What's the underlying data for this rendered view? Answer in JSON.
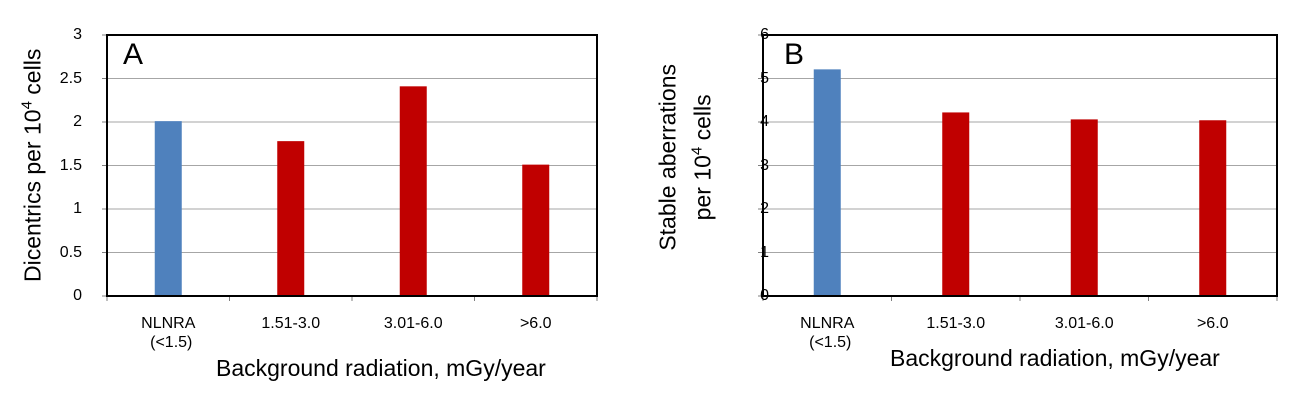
{
  "chart_data": [
    {
      "type": "bar",
      "panel_label": "A",
      "categories": [
        "NLNRA\n(<1.5)",
        "1.51-3.0",
        "3.01-6.0",
        ">6.0"
      ],
      "values": [
        2.01,
        1.78,
        2.41,
        1.51
      ],
      "bar_colors": [
        "#4f81bd",
        "#c00000",
        "#c00000",
        "#c00000"
      ],
      "ylabel_main": "Dicentrics per 10",
      "ylabel_sup": "4",
      "ylabel_tail": " cells",
      "xlabel": "Background radiation, mGy/year",
      "ylim": [
        0,
        3
      ],
      "yticks": [
        "0",
        "0.5",
        "1",
        "1.5",
        "2",
        "2.5",
        "3"
      ],
      "grid": true
    },
    {
      "type": "bar",
      "panel_label": "B",
      "categories": [
        "NLNRA\n(<1.5)",
        "1.51-3.0",
        "3.01-6.0",
        ">6.0"
      ],
      "values": [
        5.21,
        4.22,
        4.06,
        4.04
      ],
      "bar_colors": [
        "#4f81bd",
        "#c00000",
        "#c00000",
        "#c00000"
      ],
      "ylabel_line1": "Stable aberrations",
      "ylabel_main": "per 10",
      "ylabel_sup": "4",
      "ylabel_tail": " cells",
      "xlabel": "Background radiation, mGy/year",
      "ylim": [
        0,
        6
      ],
      "yticks": [
        "0",
        "1",
        "2",
        "3",
        "4",
        "5",
        "6"
      ],
      "grid": true
    }
  ]
}
